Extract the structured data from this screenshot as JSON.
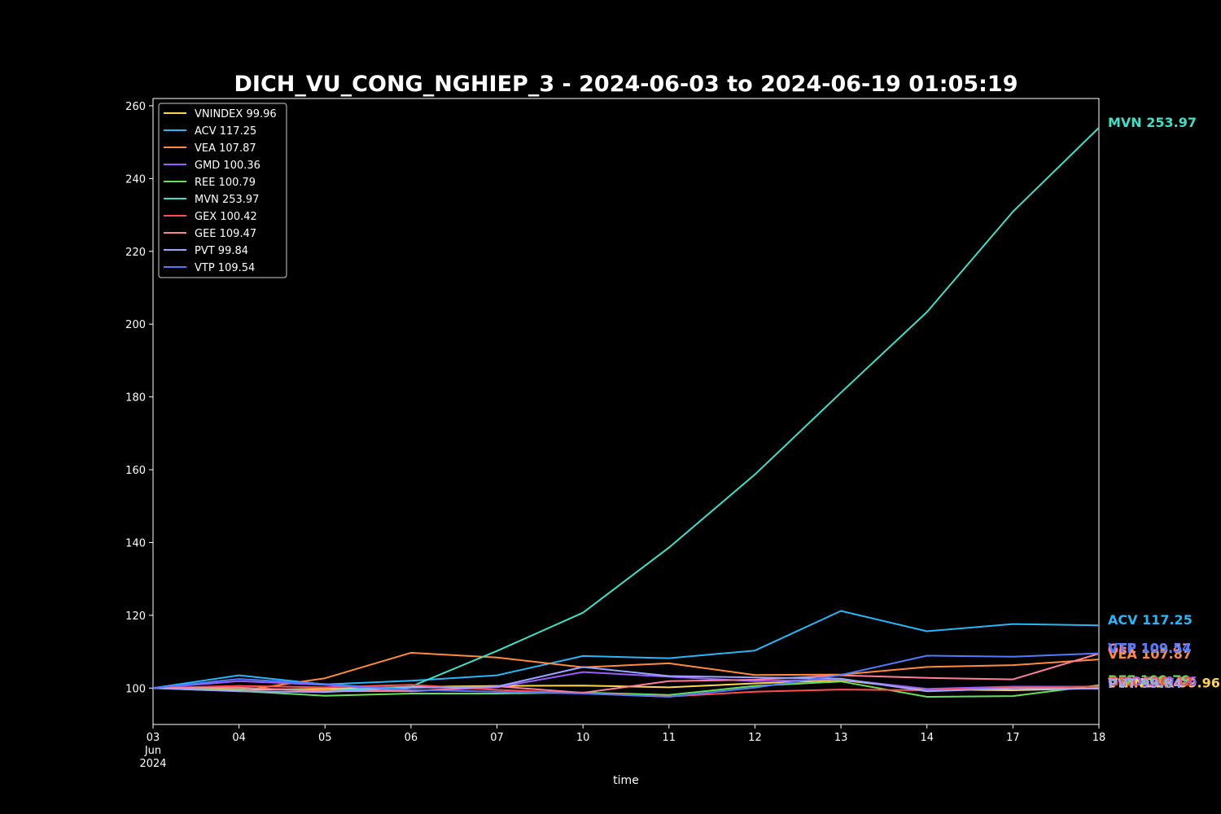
{
  "chart_data": {
    "type": "line",
    "title": "DICH_VU_CONG_NGHIEP_3 - 2024-06-03 to 2024-06-19 01:05:19",
    "xlabel": "time",
    "ylabel": "",
    "ylim": [
      90,
      262
    ],
    "yticks": [
      100,
      120,
      140,
      160,
      180,
      200,
      220,
      240,
      260
    ],
    "x": [
      "2024-06-03",
      "2024-06-04",
      "2024-06-05",
      "2024-06-06",
      "2024-06-07",
      "2024-06-10",
      "2024-06-11",
      "2024-06-12",
      "2024-06-13",
      "2024-06-14",
      "2024-06-17",
      "2024-06-18"
    ],
    "xtick_labels": [
      [
        "03",
        "Jun",
        "2024"
      ],
      [
        "04"
      ],
      [
        "05"
      ],
      [
        "06"
      ],
      [
        "07"
      ],
      [
        "10"
      ],
      [
        "11"
      ],
      [
        "12"
      ],
      [
        "13"
      ],
      [
        "14"
      ],
      [
        "17"
      ],
      [
        "18"
      ]
    ],
    "grid": false,
    "legend_position": "top-left",
    "series": [
      {
        "name": "VNINDEX",
        "last": "99.96",
        "color": "#ffd54f",
        "values": [
          100,
          99.5,
          99.8,
          100.3,
          100.6,
          100.7,
          100.2,
          101.3,
          102.2,
          99.6,
          99.4,
          99.96
        ]
      },
      {
        "name": "ACV",
        "last": "117.25",
        "color": "#29b6f6",
        "values": [
          100,
          103.5,
          101.0,
          102.0,
          103.5,
          108.8,
          108.2,
          110.3,
          121.2,
          115.6,
          117.6,
          117.25
        ]
      },
      {
        "name": "VEA",
        "last": "107.87",
        "color": "#ff8a3d",
        "values": [
          100,
          99.2,
          102.7,
          109.7,
          108.4,
          105.7,
          106.8,
          103.6,
          103.7,
          105.8,
          106.3,
          107.87
        ]
      },
      {
        "name": "GMD",
        "last": "100.36",
        "color": "#9c5cff",
        "values": [
          100,
          101.9,
          100.9,
          99.1,
          100.2,
          104.4,
          103.1,
          101.9,
          102.4,
          99.8,
          100.4,
          100.36
        ]
      },
      {
        "name": "REE",
        "last": "100.79",
        "color": "#66e05a",
        "values": [
          100,
          99.2,
          97.9,
          98.5,
          98.5,
          98.8,
          98.1,
          100.6,
          101.8,
          97.6,
          97.8,
          100.79
        ]
      },
      {
        "name": "MVN",
        "last": "253.97",
        "color": "#3fe0c8",
        "values": [
          100,
          100.0,
          99.3,
          100.4,
          110.2,
          120.7,
          138.6,
          158.7,
          181.2,
          203.3,
          230.9,
          253.97
        ]
      },
      {
        "name": "GEX",
        "last": "100.42",
        "color": "#ff4d4d",
        "values": [
          100,
          100.6,
          100.2,
          100.9,
          99.5,
          98.6,
          97.7,
          99.0,
          99.6,
          99.4,
          100.1,
          100.42
        ]
      },
      {
        "name": "GEE",
        "last": "109.47",
        "color": "#ff7f9a",
        "values": [
          100,
          100.1,
          99.1,
          99.2,
          100.5,
          98.7,
          101.9,
          102.3,
          103.5,
          102.8,
          102.4,
          109.47
        ]
      },
      {
        "name": "PVT",
        "last": "99.84",
        "color": "#9aa5ff",
        "values": [
          100,
          99.1,
          98.9,
          100.1,
          100.4,
          105.8,
          103.3,
          102.9,
          102.6,
          99.1,
          99.9,
          99.84
        ]
      },
      {
        "name": "VTP",
        "last": "109.54",
        "color": "#4f7cff",
        "values": [
          100,
          102.5,
          101.1,
          99.5,
          99.0,
          98.5,
          97.6,
          100.1,
          103.6,
          108.9,
          108.6,
          109.54
        ]
      }
    ]
  }
}
